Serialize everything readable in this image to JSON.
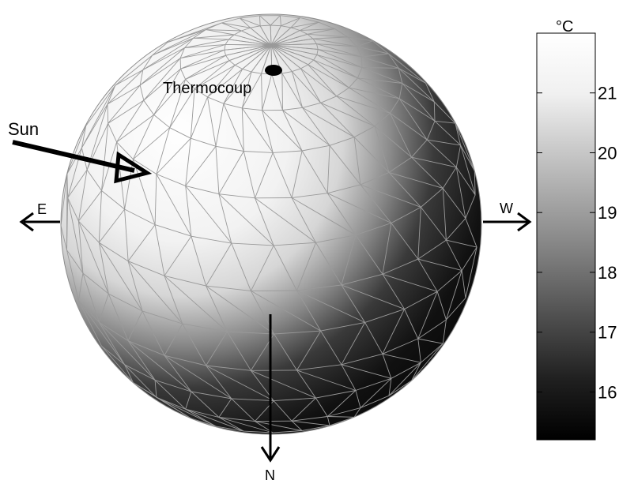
{
  "labels": {
    "sun": "Sun",
    "thermocouple": "Thermocoup",
    "east": "E",
    "west": "W",
    "north": "N"
  },
  "colorbar": {
    "unit": "°C",
    "ticks": [
      "21",
      "20",
      "19",
      "18",
      "17",
      "16"
    ],
    "tick_values": [
      21,
      20,
      19,
      18,
      17,
      16
    ],
    "range": [
      15.2,
      22.0
    ],
    "colormap": "gray"
  },
  "colors": {
    "mesh_lines": "#9a9a9a",
    "arrows": "#000000",
    "thermocouple_marker": "#000000"
  }
}
